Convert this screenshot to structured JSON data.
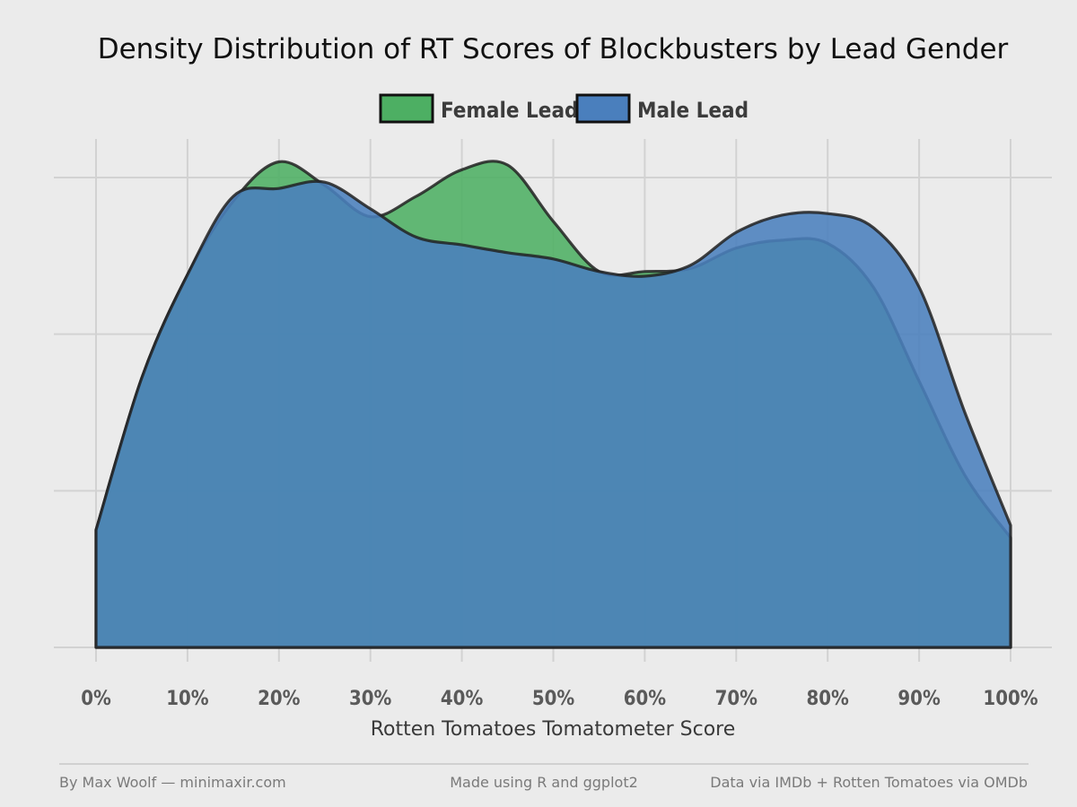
{
  "chart_data": {
    "type": "area",
    "title": "Density Distribution of RT Scores of Blockbusters by Lead Gender",
    "xlabel": "Rotten Tomatoes Tomatometer Score",
    "ylabel": "",
    "xlim": [
      0,
      100
    ],
    "ylim": [
      0,
      3.0
    ],
    "x_tick_labels": [
      "0%",
      "10%",
      "20%",
      "30%",
      "40%",
      "50%",
      "60%",
      "70%",
      "80%",
      "90%",
      "100%"
    ],
    "y_gridlines": [
      0,
      1,
      2,
      3
    ],
    "grid": true,
    "legend_position": "top",
    "x": [
      0,
      5,
      10,
      15,
      20,
      25,
      30,
      35,
      40,
      45,
      50,
      55,
      60,
      65,
      70,
      75,
      80,
      85,
      90,
      95,
      100
    ],
    "series": [
      {
        "name": "Female Lead",
        "color": "#4daf63",
        "values": [
          0.75,
          1.72,
          2.38,
          2.85,
          3.1,
          2.95,
          2.75,
          2.88,
          3.05,
          3.08,
          2.72,
          2.4,
          2.4,
          2.42,
          2.55,
          2.6,
          2.58,
          2.3,
          1.7,
          1.1,
          0.7
        ]
      },
      {
        "name": "Male Lead",
        "color": "#4a7fbd",
        "values": [
          0.75,
          1.72,
          2.38,
          2.88,
          2.93,
          2.97,
          2.8,
          2.62,
          2.57,
          2.52,
          2.48,
          2.4,
          2.37,
          2.44,
          2.65,
          2.76,
          2.77,
          2.68,
          2.3,
          1.5,
          0.78
        ]
      }
    ]
  },
  "captions": {
    "left": "By Max Woolf — minimaxir.com",
    "center": "Made using R and ggplot2",
    "right": "Data via IMDb + Rotten Tomatoes via OMDb"
  }
}
